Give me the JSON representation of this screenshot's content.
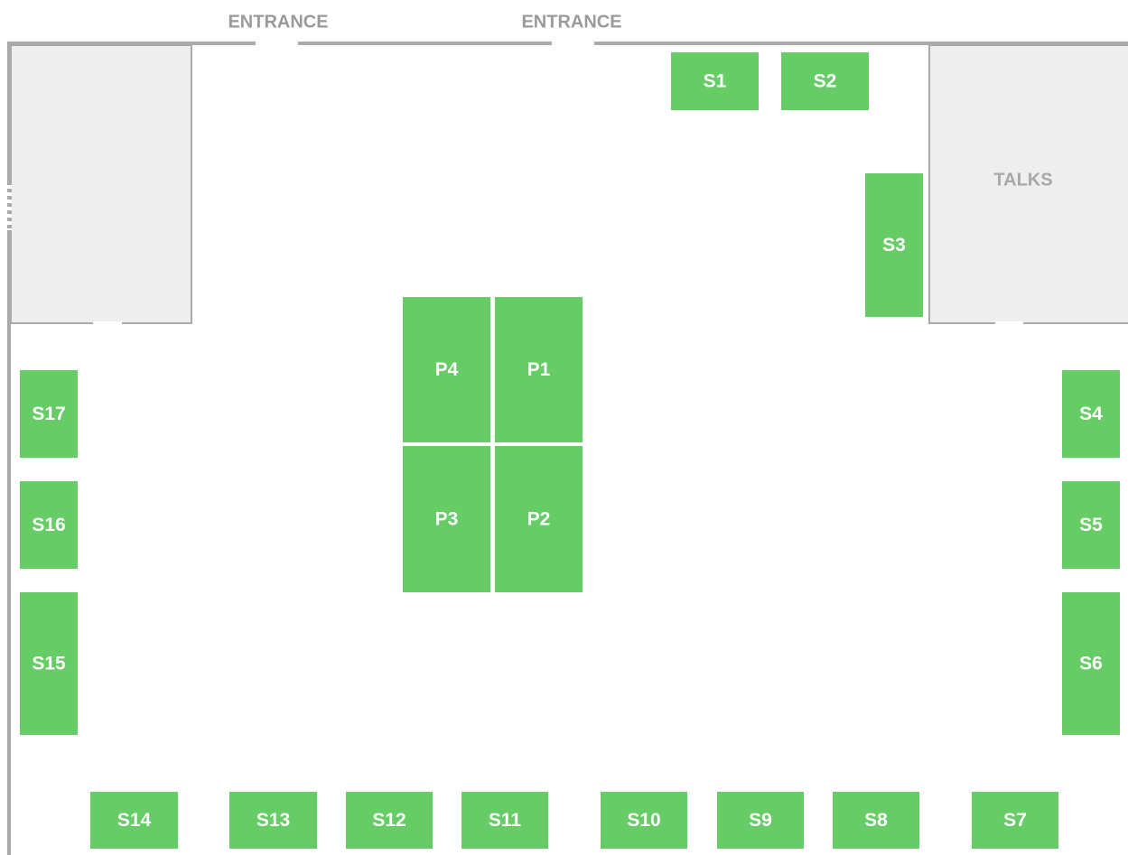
{
  "entrances": [
    "ENTRANCE",
    "ENTRANCE"
  ],
  "rooms": [
    {
      "label": "TALKS"
    }
  ],
  "booths": [
    {
      "label": "S1"
    },
    {
      "label": "S2"
    },
    {
      "label": "S3"
    },
    {
      "label": "P4"
    },
    {
      "label": "P1"
    },
    {
      "label": "P3"
    },
    {
      "label": "P2"
    },
    {
      "label": "S17"
    },
    {
      "label": "S16"
    },
    {
      "label": "S15"
    },
    {
      "label": "S4"
    },
    {
      "label": "S5"
    },
    {
      "label": "S6"
    },
    {
      "label": "S14"
    },
    {
      "label": "S13"
    },
    {
      "label": "S12"
    },
    {
      "label": "S11"
    },
    {
      "label": "S10"
    },
    {
      "label": "S9"
    },
    {
      "label": "S8"
    },
    {
      "label": "S7"
    }
  ]
}
